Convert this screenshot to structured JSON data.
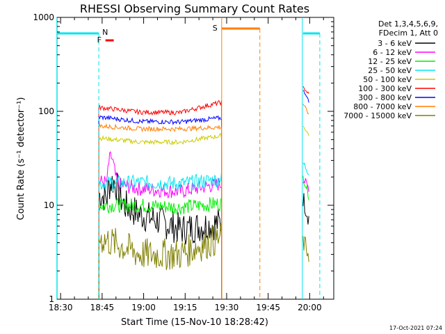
{
  "chart_data": {
    "type": "line",
    "title": "RHESSI Observing Summary Count Rates",
    "xlabel": "Start Time (15-Nov-10 18:28:42)",
    "ylabel": "Count Rate (s⁻¹ detector⁻¹)",
    "y_scale": "log",
    "ylim": [
      1,
      1000
    ],
    "xlim_minutes": [
      0,
      100
    ],
    "x_tick_labels": [
      "18:30",
      "18:45",
      "19:00",
      "19:15",
      "19:30",
      "19:45",
      "20:00"
    ],
    "y_tick_labels": [
      "1",
      "10",
      "100",
      "1000"
    ],
    "legend_header": [
      "Det 1,3,4,5,6,9,",
      "FDecim 1, Att 0"
    ],
    "legend_position": "right",
    "timestamp": "17-Oct-2021 07:24",
    "flags": [
      {
        "letter": "N",
        "color": "#00e5ee",
        "x_start": 18.48,
        "x_end": 18.73,
        "dashed_end": 18.73
      },
      {
        "letter": "F",
        "color": "#ff0000",
        "x_start": 18.77,
        "x_end": 18.82
      },
      {
        "letter": "S",
        "color": "#ff7f00",
        "x_start": 19.47,
        "x_end": 19.7,
        "dashed_end": 19.7
      },
      {
        "letter": "",
        "color": "#00e5ee",
        "x_start": 19.96,
        "x_end": 20.04,
        "dashed_end": 20.04
      }
    ],
    "series": [
      {
        "name": "3 - 6 keV",
        "color": "#000000",
        "segA": [
          13,
          8,
          5.5,
          6.5
        ],
        "segB": [
          12,
          9,
          7
        ]
      },
      {
        "name": "6 - 12 keV",
        "color": "#ff00ff",
        "segA": [
          18,
          15,
          14,
          17
        ],
        "segB": [
          19,
          17,
          15
        ]
      },
      {
        "name": "12 - 25 keV",
        "color": "#00ee00",
        "segA": [
          10,
          10,
          9.5,
          10.5
        ],
        "segB": [
          20,
          16,
          12
        ]
      },
      {
        "name": "25 - 50 keV",
        "color": "#00e5ee",
        "segA": [
          17,
          17.5,
          17,
          19
        ],
        "segB": [
          28,
          25,
          22
        ]
      },
      {
        "name": "50 - 100 keV",
        "color": "#cccc00",
        "segA": [
          52,
          47,
          47,
          55
        ],
        "segB": [
          70,
          62,
          55
        ]
      },
      {
        "name": "100 - 300 keV",
        "color": "#ff0000",
        "segA": [
          110,
          98,
          97,
          125
        ],
        "segB": [
          180,
          165,
          150
        ]
      },
      {
        "name": "300 - 800 keV",
        "color": "#0000ff",
        "segA": [
          87,
          78,
          77,
          85
        ],
        "segB": [
          165,
          150,
          120
        ]
      },
      {
        "name": "800 - 7000 keV",
        "color": "#ff7f00",
        "segA": [
          70,
          65,
          65,
          68
        ],
        "segB": [
          120,
          105,
          90
        ]
      },
      {
        "name": "7000 - 15000 keV",
        "color": "#808000",
        "segA": [
          4.5,
          3,
          3,
          4.5
        ],
        "segB": [
          4,
          3.5,
          3
        ]
      }
    ]
  }
}
